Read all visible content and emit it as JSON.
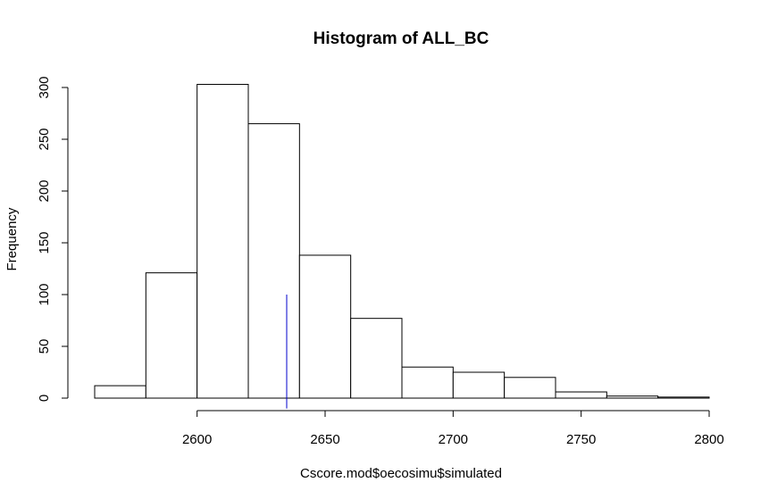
{
  "chart_data": {
    "type": "bar",
    "title": "Histogram of ALL_BC",
    "xlabel": "Cscore.mod$oecosimu$simulated",
    "ylabel": "Frequency",
    "bins": [
      {
        "start": 2560,
        "end": 2580,
        "count": 12
      },
      {
        "start": 2580,
        "end": 2600,
        "count": 121
      },
      {
        "start": 2600,
        "end": 2620,
        "count": 303
      },
      {
        "start": 2620,
        "end": 2640,
        "count": 265
      },
      {
        "start": 2640,
        "end": 2660,
        "count": 138
      },
      {
        "start": 2660,
        "end": 2680,
        "count": 77
      },
      {
        "start": 2680,
        "end": 2700,
        "count": 30
      },
      {
        "start": 2700,
        "end": 2720,
        "count": 25
      },
      {
        "start": 2720,
        "end": 2740,
        "count": 20
      },
      {
        "start": 2740,
        "end": 2760,
        "count": 6
      },
      {
        "start": 2760,
        "end": 2780,
        "count": 2
      },
      {
        "start": 2780,
        "end": 2800,
        "count": 1
      }
    ],
    "xticks": [
      2600,
      2650,
      2700,
      2750,
      2800
    ],
    "yticks": [
      0,
      50,
      100,
      150,
      200,
      250,
      300
    ],
    "xlim": [
      2560,
      2800
    ],
    "ylim": [
      0,
      303
    ],
    "grid": false,
    "reference_line": {
      "x": 2635,
      "y_from": -10,
      "y_to": 100,
      "color": "#0000cc"
    }
  }
}
